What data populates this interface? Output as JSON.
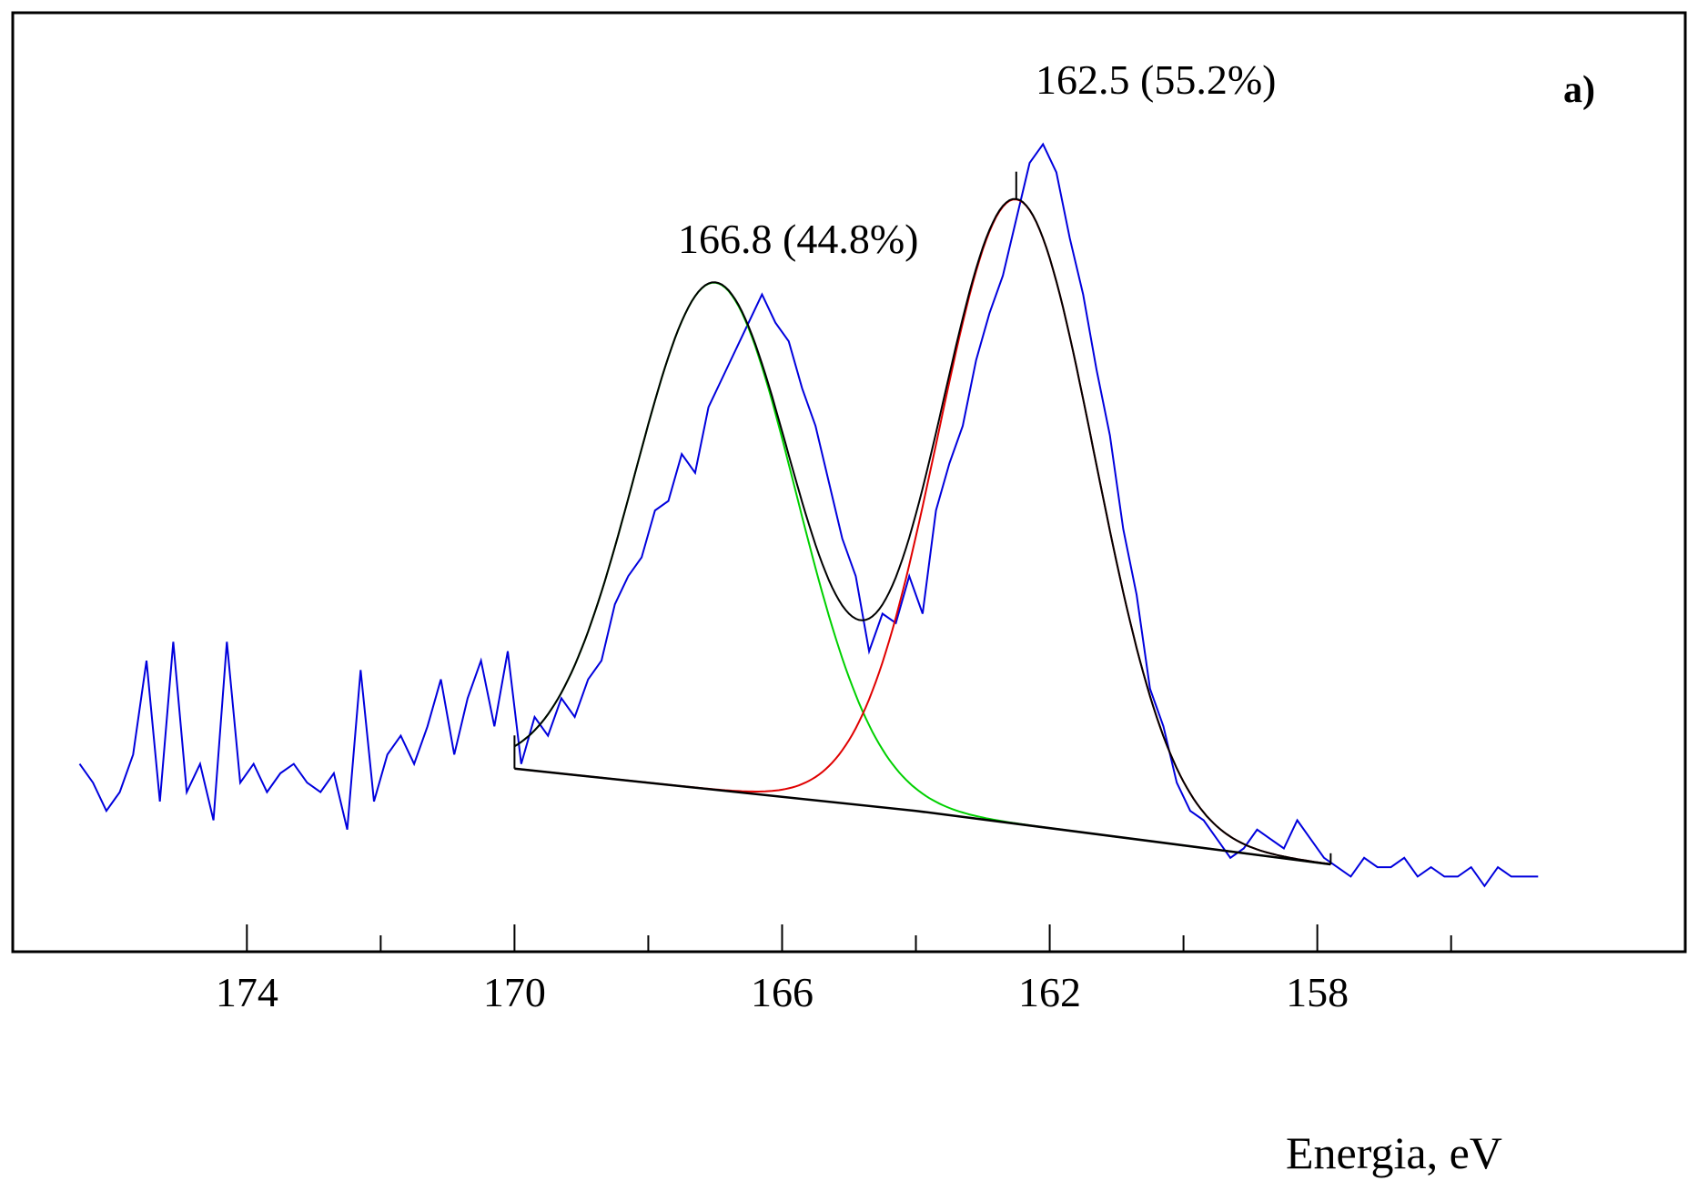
{
  "chart_data": {
    "type": "line",
    "title": "",
    "panel_label": "a)",
    "xlabel": "Energia, eV",
    "ylabel": "",
    "x_reversed": true,
    "xlim": [
      177.5,
      152.5
    ],
    "ylim": [
      0,
      1
    ],
    "grid": false,
    "x_major_ticks": [
      174,
      170,
      166,
      162,
      158
    ],
    "x_major_tick_labels": [
      "174",
      "170",
      "166",
      "162",
      "158"
    ],
    "x_minor_ticks": [
      172,
      168,
      164,
      160,
      156
    ],
    "annotations": [
      {
        "text": "166.8 (44.8%)",
        "x": 166.8
      },
      {
        "text": "162.5 (55.2%)",
        "x": 162.5
      }
    ],
    "peak_markers": [
      {
        "x": 162.5
      }
    ],
    "background": {
      "x": [
        170.0,
        164.0,
        157.8
      ],
      "y": [
        0.195,
        0.15,
        0.093
      ]
    },
    "components": [
      {
        "center": 167.0,
        "height": 0.54,
        "sigma": 1.2,
        "color": "#00d000"
      },
      {
        "center": 162.5,
        "height": 0.665,
        "sigma": 1.17,
        "color": "#e00000"
      }
    ],
    "series": [
      {
        "kind": "measured",
        "color": "#0000dd",
        "x": [
          176.5,
          176.3,
          176.1,
          175.9,
          175.7,
          175.5,
          175.3,
          175.1,
          174.9,
          174.7,
          174.5,
          174.3,
          174.1,
          173.9,
          173.7,
          173.5,
          173.3,
          173.1,
          172.9,
          172.7,
          172.5,
          172.3,
          172.1,
          171.9,
          171.7,
          171.5,
          171.3,
          171.1,
          170.9,
          170.7,
          170.5,
          170.3,
          170.1,
          169.9,
          169.7,
          169.5,
          169.3,
          169.1,
          168.9,
          168.7,
          168.5,
          168.3,
          168.1,
          167.9,
          167.7,
          167.5,
          167.3,
          167.1,
          166.9,
          166.7,
          166.5,
          166.3,
          166.1,
          165.9,
          165.7,
          165.5,
          165.3,
          165.1,
          164.9,
          164.7,
          164.5,
          164.3,
          164.1,
          163.9,
          163.7,
          163.5,
          163.3,
          163.1,
          162.9,
          162.7,
          162.5,
          162.3,
          162.1,
          161.9,
          161.7,
          161.5,
          161.3,
          161.1,
          160.9,
          160.7,
          160.5,
          160.3,
          160.1,
          159.9,
          159.7,
          159.5,
          159.3,
          159.1,
          158.9,
          158.7,
          158.5,
          158.3,
          158.1,
          157.9,
          157.7,
          157.5,
          157.3,
          157.1,
          156.9,
          156.7,
          156.5,
          156.3,
          156.1,
          155.9,
          155.7,
          155.5,
          155.3,
          155.1,
          154.9,
          154.7
        ],
        "y": [
          0.2,
          0.18,
          0.15,
          0.17,
          0.21,
          0.31,
          0.16,
          0.33,
          0.17,
          0.2,
          0.14,
          0.33,
          0.18,
          0.2,
          0.17,
          0.19,
          0.2,
          0.18,
          0.17,
          0.19,
          0.13,
          0.3,
          0.16,
          0.21,
          0.23,
          0.2,
          0.24,
          0.29,
          0.21,
          0.27,
          0.31,
          0.24,
          0.32,
          0.2,
          0.25,
          0.23,
          0.27,
          0.25,
          0.29,
          0.31,
          0.37,
          0.4,
          0.42,
          0.47,
          0.48,
          0.53,
          0.51,
          0.58,
          0.61,
          0.64,
          0.67,
          0.7,
          0.67,
          0.65,
          0.6,
          0.56,
          0.5,
          0.44,
          0.4,
          0.32,
          0.36,
          0.35,
          0.4,
          0.36,
          0.47,
          0.52,
          0.56,
          0.63,
          0.68,
          0.72,
          0.78,
          0.84,
          0.86,
          0.83,
          0.76,
          0.7,
          0.62,
          0.55,
          0.45,
          0.38,
          0.28,
          0.24,
          0.18,
          0.15,
          0.14,
          0.12,
          0.1,
          0.11,
          0.13,
          0.12,
          0.11,
          0.14,
          0.12,
          0.1,
          0.09,
          0.08,
          0.1,
          0.09,
          0.09,
          0.1,
          0.08,
          0.09,
          0.08,
          0.08,
          0.09,
          0.07,
          0.09,
          0.08,
          0.08,
          0.08
        ]
      },
      {
        "kind": "envelope",
        "color": "#000000"
      }
    ]
  }
}
